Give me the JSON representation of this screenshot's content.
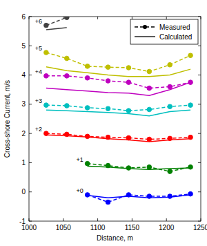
{
  "chart_data": {
    "type": "line",
    "x_label": "Distance, m",
    "y_label": "Cross-shore Current, m/s",
    "xlim": [
      1000,
      1250
    ],
    "ylim": [
      -1,
      6
    ],
    "xticks": [
      1000,
      1050,
      1100,
      1150,
      1200,
      1250
    ],
    "yticks": [
      -1,
      0,
      1,
      2,
      3,
      4,
      5,
      6
    ],
    "grid": false,
    "legend": "northeast",
    "series": [
      {
        "name": "Measured",
        "label": "+0",
        "color": "#0000ff",
        "line_style": "dashed",
        "marker": "circle",
        "x": [
          1085,
          1115,
          1145,
          1175,
          1205,
          1235
        ],
        "values": [
          -0.1,
          -0.35,
          -0.1,
          -0.15,
          -0.15,
          -0.07
        ]
      },
      {
        "name": "Calculated",
        "color": "#0000ff",
        "line_style": "solid",
        "marker": "none",
        "x": [
          1085,
          1115,
          1145,
          1175,
          1205,
          1235
        ],
        "values": [
          -0.12,
          -0.2,
          -0.15,
          -0.2,
          -0.18,
          -0.1
        ]
      },
      {
        "name": "Measured",
        "label": "+1",
        "color": "#008000",
        "line_style": "dashed",
        "marker": "circle",
        "x": [
          1085,
          1115,
          1145,
          1175,
          1205,
          1235
        ],
        "values": [
          0.97,
          0.9,
          0.82,
          0.85,
          0.7,
          0.85
        ]
      },
      {
        "name": "Calculated",
        "color": "#008000",
        "line_style": "solid",
        "marker": "none",
        "x": [
          1085,
          1115,
          1145,
          1175,
          1205,
          1235
        ],
        "values": [
          0.88,
          0.85,
          0.8,
          0.77,
          0.8,
          0.82
        ]
      },
      {
        "name": "Measured",
        "label": "+2",
        "color": "#ff0000",
        "line_style": "dashed",
        "marker": "circle",
        "x": [
          1025,
          1055,
          1085,
          1115,
          1145,
          1175,
          1205,
          1235
        ],
        "values": [
          2.0,
          1.97,
          1.9,
          1.87,
          1.85,
          1.8,
          1.83,
          1.87
        ]
      },
      {
        "name": "Calculated",
        "color": "#ff0000",
        "line_style": "solid",
        "marker": "none",
        "x": [
          1025,
          1055,
          1085,
          1115,
          1145,
          1175,
          1205,
          1235
        ],
        "values": [
          1.95,
          1.92,
          1.88,
          1.82,
          1.78,
          1.72,
          1.78,
          1.82
        ]
      },
      {
        "name": "Measured",
        "label": "+3",
        "color": "#00bfbf",
        "line_style": "dashed",
        "marker": "circle",
        "x": [
          1025,
          1055,
          1085,
          1115,
          1145,
          1175,
          1205,
          1235
        ],
        "values": [
          2.97,
          2.95,
          2.88,
          2.85,
          2.78,
          2.82,
          2.92,
          2.97
        ]
      },
      {
        "name": "Calculated",
        "color": "#00bfbf",
        "line_style": "solid",
        "marker": "none",
        "x": [
          1025,
          1055,
          1085,
          1115,
          1145,
          1175,
          1205,
          1235
        ],
        "values": [
          2.8,
          2.78,
          2.75,
          2.72,
          2.68,
          2.6,
          2.75,
          2.8
        ]
      },
      {
        "name": "Measured",
        "label": "+4",
        "color": "#bf00bf",
        "line_style": "dashed",
        "marker": "circle",
        "x": [
          1025,
          1055,
          1085,
          1115,
          1145,
          1175,
          1205,
          1235
        ],
        "values": [
          3.97,
          3.97,
          3.9,
          3.8,
          3.75,
          3.55,
          3.6,
          3.75
        ]
      },
      {
        "name": "Calculated",
        "color": "#bf00bf",
        "line_style": "solid",
        "marker": "none",
        "x": [
          1025,
          1055,
          1085,
          1115,
          1145,
          1175,
          1205,
          1235
        ],
        "values": [
          3.55,
          3.5,
          3.45,
          3.4,
          3.38,
          3.3,
          3.5,
          3.75
        ]
      },
      {
        "name": "Measured",
        "label": "+5",
        "color": "#bfbf00",
        "line_style": "dashed",
        "marker": "circle",
        "x": [
          1025,
          1055,
          1085,
          1115,
          1145,
          1175,
          1205,
          1235
        ],
        "values": [
          4.77,
          4.57,
          4.3,
          4.27,
          4.25,
          4.12,
          4.35,
          4.67
        ]
      },
      {
        "name": "Calculated",
        "color": "#bfbf00",
        "line_style": "solid",
        "marker": "none",
        "x": [
          1025,
          1055,
          1085,
          1115,
          1145,
          1175,
          1205,
          1235
        ],
        "values": [
          4.28,
          4.15,
          4.08,
          4.0,
          3.95,
          3.95,
          4.0,
          4.2
        ]
      },
      {
        "name": "Measured",
        "label": "+6",
        "color": "#404040",
        "line_style": "dashed",
        "marker": "circle",
        "x": [
          1025,
          1055
        ],
        "values": [
          5.7,
          5.97
        ]
      },
      {
        "name": "Calculated",
        "color": "#404040",
        "line_style": "solid",
        "marker": "none",
        "x": [
          1025,
          1055
        ],
        "values": [
          5.55,
          5.62
        ]
      }
    ]
  }
}
